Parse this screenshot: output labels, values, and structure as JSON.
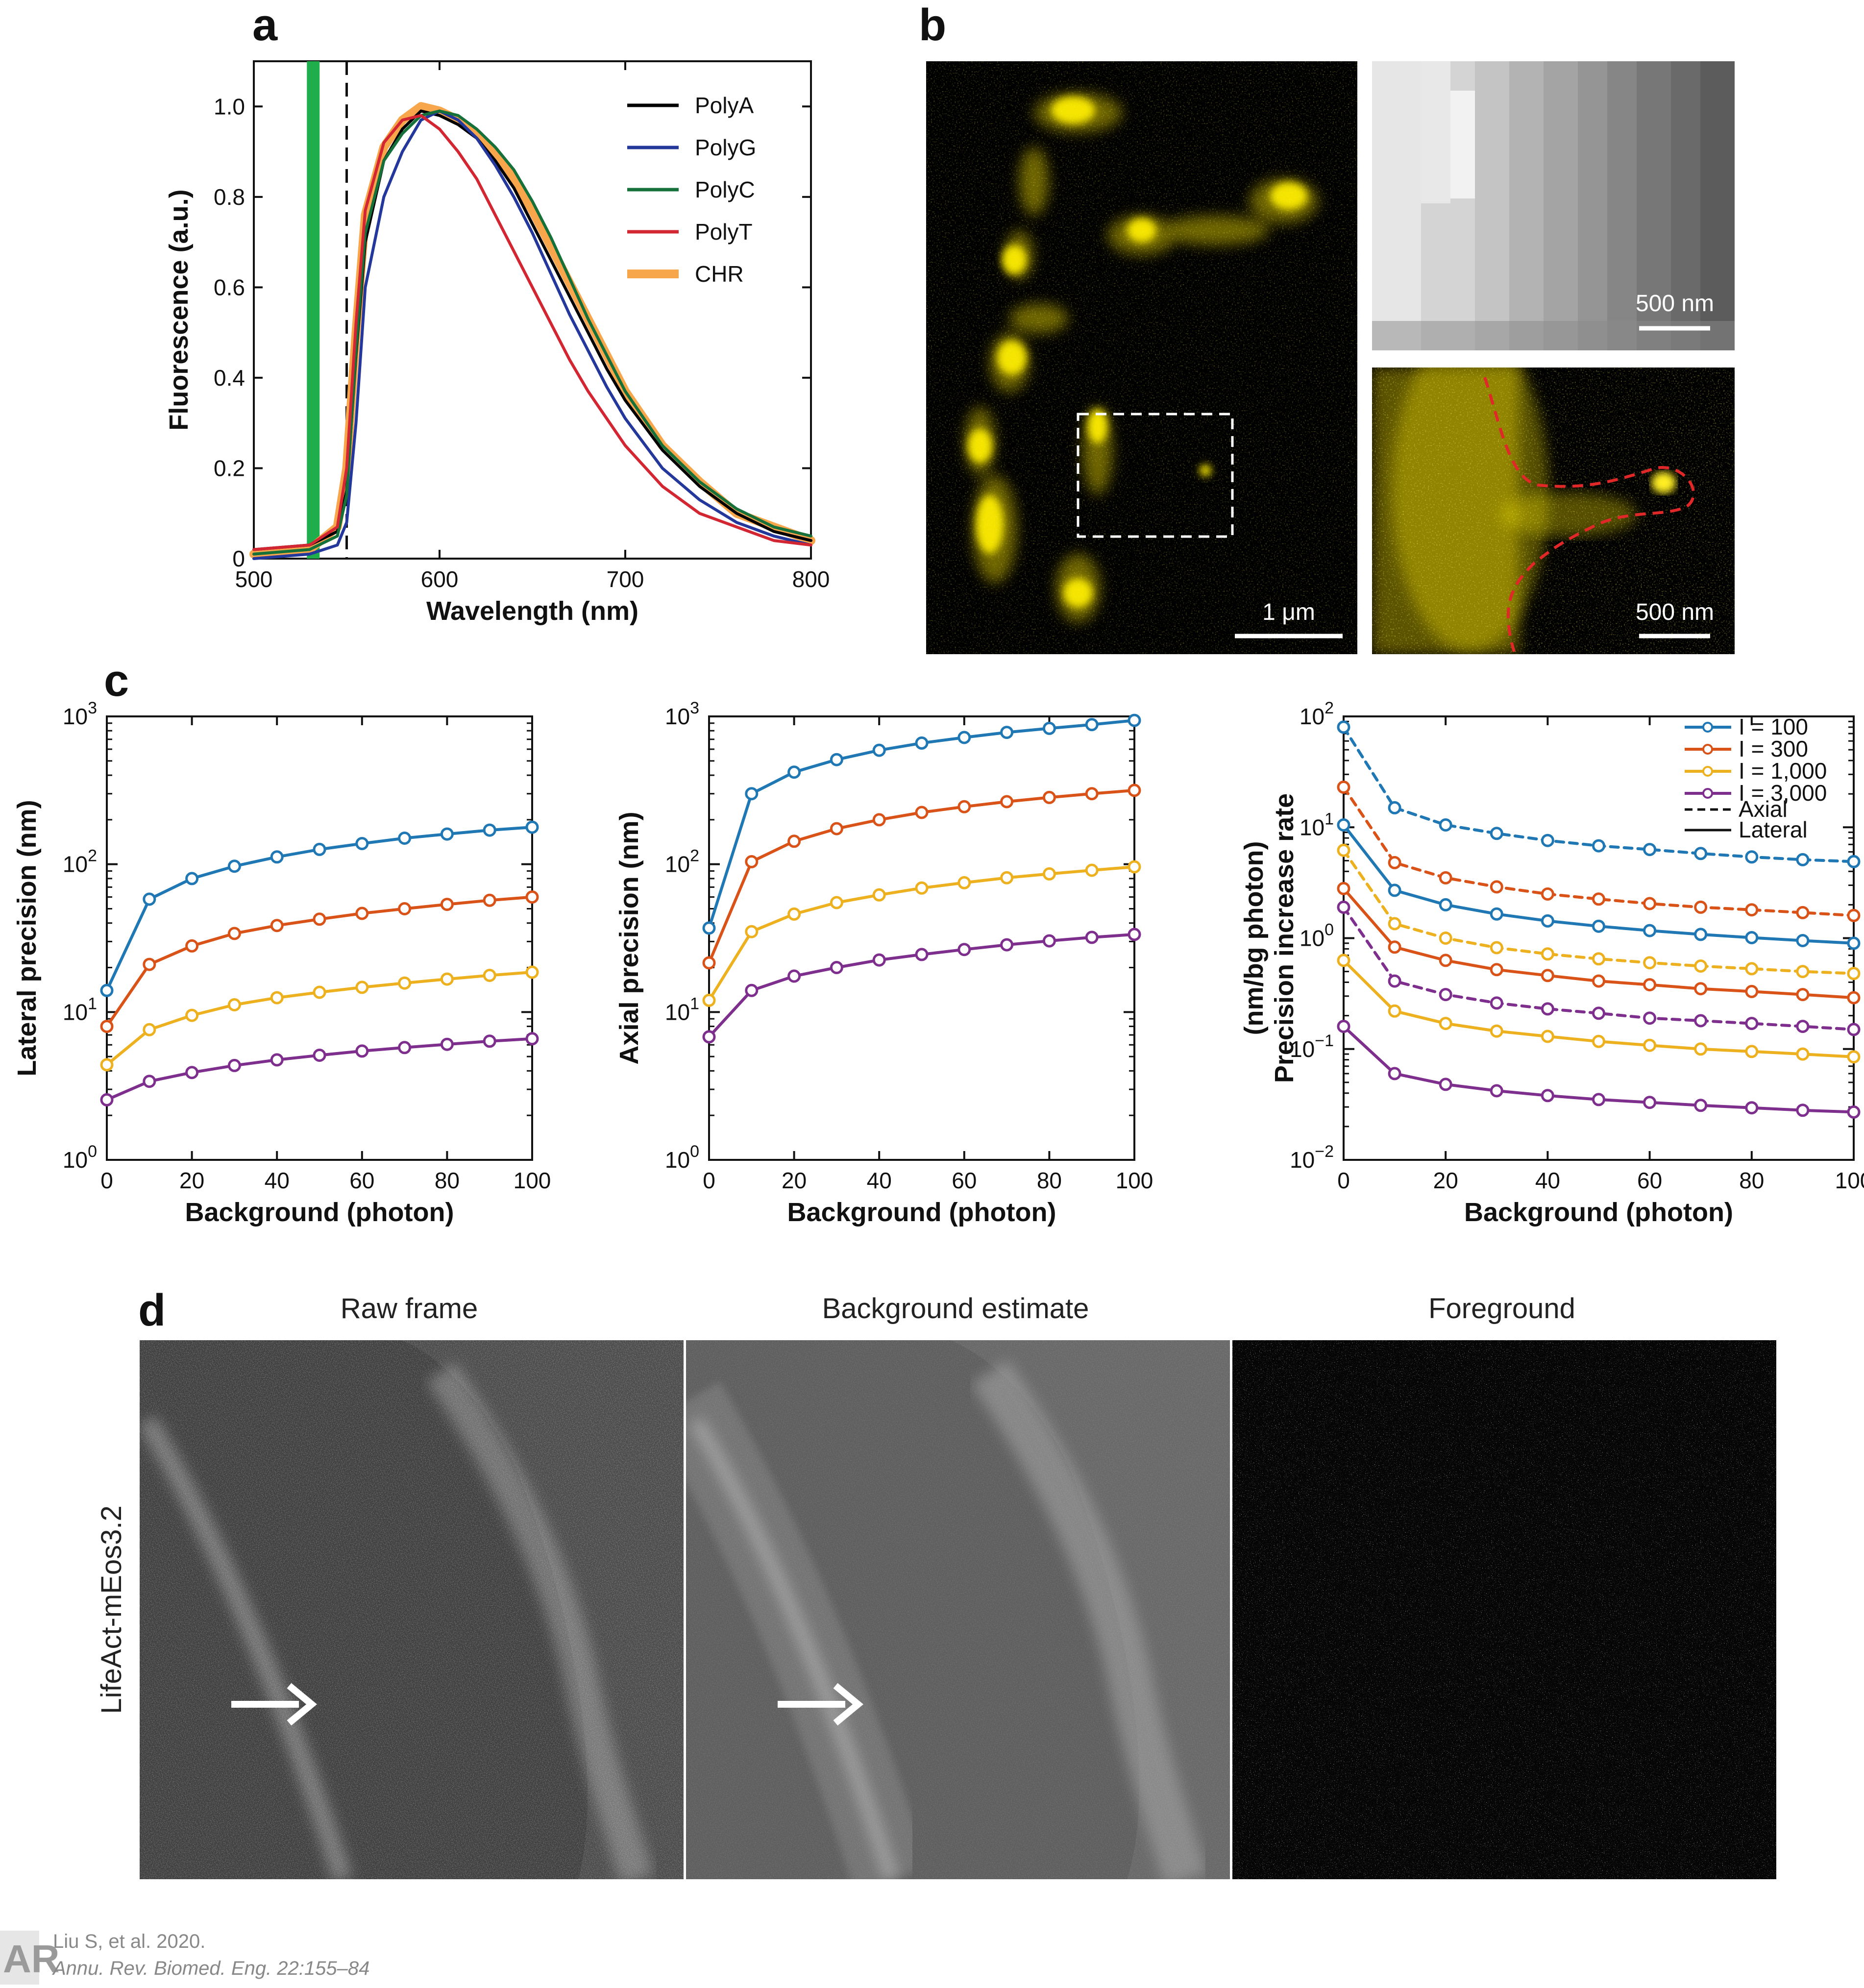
{
  "panel_letters": {
    "a": "a",
    "b": "b",
    "c": "c",
    "d": "d"
  },
  "colors": {
    "polyA": "#000000",
    "polyG": "#24379a",
    "polyC": "#16703a",
    "polyT": "#d22732",
    "chr": "#f7a64b",
    "excitation": "#1fae4b",
    "blue": "#1f77b4",
    "red": "#d95319",
    "yellow": "#edb120",
    "purple": "#7e2f8e"
  },
  "chart_data": [
    {
      "id": "a",
      "type": "line",
      "title": "",
      "xlabel": "Wavelength (nm)",
      "ylabel": "Fluorescence (a.u.)",
      "xlim": [
        500,
        800
      ],
      "ylim": [
        0,
        1.1
      ],
      "xticks": [
        "500",
        "600",
        "700",
        "800"
      ],
      "yticks": [
        "0",
        "0.2",
        "0.4",
        "0.6",
        "0.8",
        "1.0"
      ],
      "excitation_line_nm": 532,
      "cutoff_dashed_nm": 550,
      "x": [
        500,
        530,
        545,
        550,
        555,
        560,
        570,
        580,
        590,
        600,
        610,
        620,
        630,
        640,
        650,
        660,
        670,
        680,
        690,
        700,
        720,
        740,
        760,
        780,
        800
      ],
      "series": [
        {
          "name": "PolyA",
          "color_key": "polyA",
          "values": [
            0.02,
            0.03,
            0.06,
            0.15,
            0.45,
            0.7,
            0.88,
            0.95,
            0.99,
            0.98,
            0.96,
            0.93,
            0.88,
            0.82,
            0.74,
            0.66,
            0.58,
            0.5,
            0.42,
            0.35,
            0.24,
            0.16,
            0.1,
            0.06,
            0.04
          ]
        },
        {
          "name": "PolyG",
          "color_key": "polyG",
          "values": [
            0.0,
            0.01,
            0.03,
            0.08,
            0.3,
            0.6,
            0.8,
            0.9,
            0.97,
            0.99,
            0.97,
            0.93,
            0.87,
            0.8,
            0.72,
            0.63,
            0.54,
            0.46,
            0.38,
            0.31,
            0.2,
            0.13,
            0.08,
            0.05,
            0.03
          ]
        },
        {
          "name": "PolyC",
          "color_key": "polyC",
          "values": [
            0.01,
            0.02,
            0.05,
            0.14,
            0.46,
            0.72,
            0.88,
            0.94,
            0.98,
            0.99,
            0.98,
            0.95,
            0.91,
            0.86,
            0.79,
            0.71,
            0.62,
            0.53,
            0.45,
            0.37,
            0.25,
            0.17,
            0.11,
            0.07,
            0.05
          ]
        },
        {
          "name": "PolyT",
          "color_key": "polyT",
          "values": [
            0.02,
            0.03,
            0.07,
            0.2,
            0.52,
            0.77,
            0.92,
            0.97,
            0.98,
            0.95,
            0.9,
            0.84,
            0.76,
            0.68,
            0.6,
            0.52,
            0.44,
            0.37,
            0.31,
            0.25,
            0.16,
            0.1,
            0.07,
            0.04,
            0.03
          ]
        },
        {
          "name": "CHR",
          "color_key": "chr",
          "values": [
            0.01,
            0.02,
            0.07,
            0.2,
            0.5,
            0.76,
            0.91,
            0.97,
            1.0,
            0.99,
            0.97,
            0.94,
            0.9,
            0.84,
            0.77,
            0.69,
            0.61,
            0.53,
            0.45,
            0.37,
            0.25,
            0.17,
            0.1,
            0.07,
            0.04
          ]
        }
      ]
    },
    {
      "id": "c1",
      "type": "line",
      "xlabel": "Background (photon)",
      "ylabel": "Lateral precision (nm)",
      "xlim": [
        0,
        100
      ],
      "ylim": [
        1,
        1000
      ],
      "yscale": "log",
      "xticks": [
        "0",
        "20",
        "40",
        "60",
        "80",
        "100"
      ],
      "yticks": [
        "10",
        "10",
        "10",
        "10"
      ],
      "ytick_exps": [
        "0",
        "1",
        "2",
        "3"
      ],
      "x": [
        0,
        10,
        20,
        30,
        40,
        50,
        60,
        70,
        80,
        90,
        100
      ],
      "series": [
        {
          "color_key": "blue",
          "values": [
            14,
            58,
            80,
            97,
            112,
            126,
            138,
            150,
            160,
            170,
            178
          ]
        },
        {
          "color_key": "red",
          "values": [
            8,
            21,
            28,
            34,
            38.5,
            42.5,
            46.5,
            50,
            53.5,
            57,
            60
          ]
        },
        {
          "color_key": "yellow",
          "values": [
            4.4,
            7.6,
            9.5,
            11.2,
            12.5,
            13.6,
            14.7,
            15.7,
            16.7,
            17.7,
            18.6
          ]
        },
        {
          "color_key": "purple",
          "values": [
            2.55,
            3.4,
            3.9,
            4.35,
            4.75,
            5.1,
            5.45,
            5.75,
            6.05,
            6.35,
            6.6
          ]
        }
      ]
    },
    {
      "id": "c2",
      "type": "line",
      "xlabel": "Background (photon)",
      "ylabel": "Axial precision (nm)",
      "xlim": [
        0,
        100
      ],
      "ylim": [
        1,
        1000
      ],
      "yscale": "log",
      "xticks": [
        "0",
        "20",
        "40",
        "60",
        "80",
        "100"
      ],
      "yticks": [
        "10",
        "10",
        "10",
        "10"
      ],
      "ytick_exps": [
        "0",
        "1",
        "2",
        "3"
      ],
      "x": [
        0,
        10,
        20,
        30,
        40,
        50,
        60,
        70,
        80,
        90,
        100
      ],
      "series": [
        {
          "color_key": "blue",
          "values": [
            37,
            300,
            420,
            510,
            590,
            660,
            720,
            780,
            830,
            880,
            940
          ]
        },
        {
          "color_key": "red",
          "values": [
            21.5,
            104,
            143,
            174,
            200,
            224,
            245,
            265,
            283,
            300,
            316
          ]
        },
        {
          "color_key": "yellow",
          "values": [
            12,
            35,
            46,
            55,
            62,
            69,
            75,
            81,
            86,
            91,
            96
          ]
        },
        {
          "color_key": "purple",
          "values": [
            6.8,
            14,
            17.5,
            20,
            22.5,
            24.5,
            26.5,
            28.5,
            30.3,
            32,
            33.5
          ]
        }
      ]
    },
    {
      "id": "c3",
      "type": "line",
      "xlabel": "Background (photon)",
      "ylabel_lines": [
        "Precision increase rate",
        "(nm/bg photon)"
      ],
      "xlim": [
        0,
        100
      ],
      "ylim": [
        0.01,
        100
      ],
      "yscale": "log",
      "xticks": [
        "0",
        "20",
        "40",
        "60",
        "80",
        "100"
      ],
      "yticks": [
        "10",
        "10",
        "10",
        "10",
        "10"
      ],
      "ytick_exps": [
        "−2",
        "−1",
        "0",
        "1",
        "2"
      ],
      "legend": {
        "position": "top-right",
        "items": [
          {
            "label": "I = 100",
            "color_key": "blue"
          },
          {
            "label": "I = 300",
            "color_key": "red"
          },
          {
            "label": "I = 1,000",
            "color_key": "yellow"
          },
          {
            "label": "I = 3,000",
            "color_key": "purple"
          }
        ],
        "styles": [
          {
            "label": "Axial",
            "dash": true
          },
          {
            "label": "Lateral",
            "dash": false
          }
        ]
      },
      "x": [
        0,
        10,
        20,
        30,
        40,
        50,
        60,
        70,
        80,
        90,
        100
      ],
      "series": [
        {
          "color_key": "blue",
          "dashed": true,
          "values": [
            80,
            15,
            10.5,
            8.8,
            7.6,
            6.8,
            6.3,
            5.8,
            5.4,
            5.1,
            4.9
          ]
        },
        {
          "color_key": "red",
          "dashed": true,
          "values": [
            23,
            4.8,
            3.5,
            2.9,
            2.5,
            2.25,
            2.05,
            1.9,
            1.8,
            1.7,
            1.6
          ]
        },
        {
          "color_key": "yellow",
          "dashed": true,
          "values": [
            6.2,
            1.35,
            1.0,
            0.82,
            0.72,
            0.65,
            0.6,
            0.56,
            0.53,
            0.5,
            0.48
          ]
        },
        {
          "color_key": "purple",
          "dashed": true,
          "values": [
            1.9,
            0.41,
            0.31,
            0.26,
            0.23,
            0.21,
            0.19,
            0.18,
            0.17,
            0.16,
            0.15
          ]
        },
        {
          "color_key": "blue",
          "dashed": false,
          "values": [
            10.5,
            2.7,
            2.0,
            1.65,
            1.43,
            1.28,
            1.17,
            1.08,
            1.01,
            0.95,
            0.9
          ]
        },
        {
          "color_key": "red",
          "dashed": false,
          "values": [
            2.8,
            0.83,
            0.63,
            0.52,
            0.46,
            0.41,
            0.38,
            0.35,
            0.33,
            0.31,
            0.29
          ]
        },
        {
          "color_key": "yellow",
          "dashed": false,
          "values": [
            0.63,
            0.22,
            0.17,
            0.145,
            0.13,
            0.117,
            0.108,
            0.1,
            0.095,
            0.09,
            0.085
          ]
        },
        {
          "color_key": "purple",
          "dashed": false,
          "values": [
            0.16,
            0.06,
            0.048,
            0.042,
            0.038,
            0.035,
            0.033,
            0.031,
            0.0295,
            0.028,
            0.027
          ]
        }
      ]
    }
  ],
  "panel_b": {
    "scale_main": "1 μm",
    "scale_top": "500 nm",
    "scale_bottom": "500 nm"
  },
  "panel_d": {
    "labels": [
      "Raw frame",
      "Background estimate",
      "Foreground"
    ],
    "side_label": "LifeAct-mEos3.2"
  },
  "credit": {
    "line1": "Liu S, et al. 2020.",
    "line2": "Annu. Rev. Biomed. Eng. 22:155–84",
    "logo": "AR"
  }
}
